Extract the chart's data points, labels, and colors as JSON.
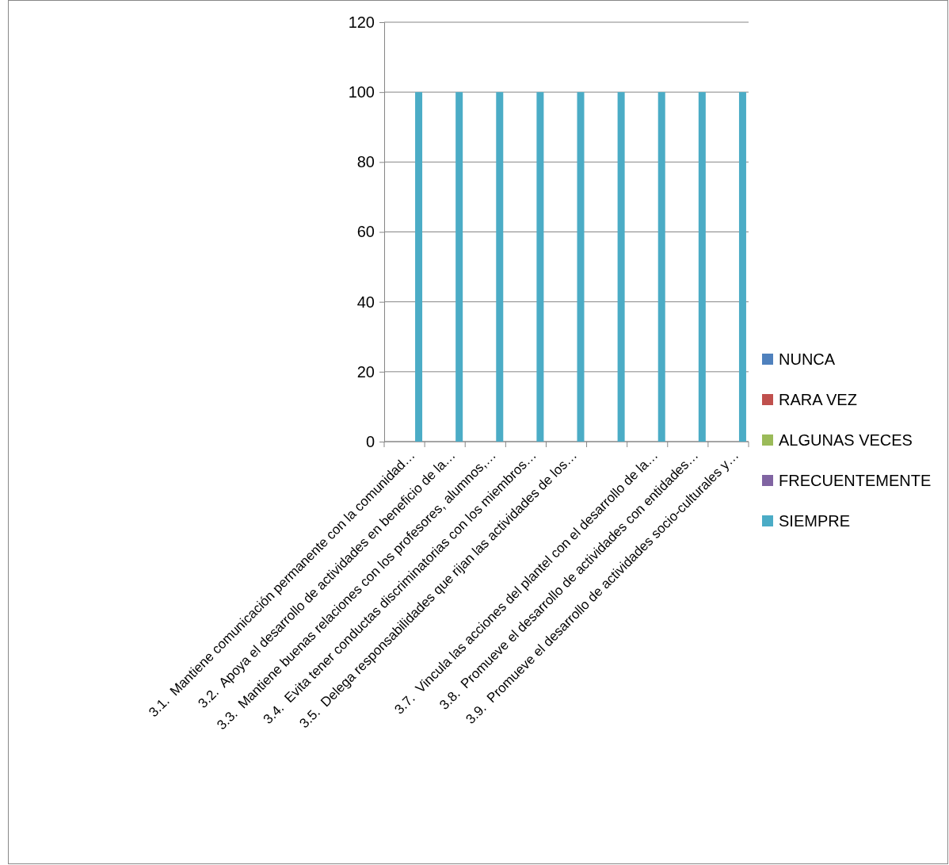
{
  "chart_data": {
    "type": "bar",
    "categories": [
      "3.1.  Mantiene comunicación permanente con la comunidad…",
      "3.2.  Apoya el desarrollo de actividades en beneficio de la…",
      "3.3.  Mantiene buenas relaciones con los profesores, alumnos,…",
      "3.4.  Evita tener conductas discriminatorias con los miembros…",
      "3.5.  Delega responsabilidades que rijan las actividades de los…",
      null,
      "3.7.  Vincula las acciones del plantel con el desarrollo de la…",
      "3.8.  Promueve el desarrollo de actividades con entidades…",
      "3.9.  Promueve el desarrollo de actividades socio-culturales y…"
    ],
    "series": [
      {
        "name": "NUNCA",
        "color": "#4f81bd",
        "values": [
          0,
          0,
          0,
          0,
          0,
          0,
          0,
          0,
          0
        ]
      },
      {
        "name": "RARA VEZ",
        "color": "#c0504d",
        "values": [
          0,
          0,
          0,
          0,
          0,
          0,
          0,
          0,
          0
        ]
      },
      {
        "name": "ALGUNAS VECES",
        "color": "#9bbb59",
        "values": [
          0,
          0,
          0,
          0,
          0,
          0,
          0,
          0,
          0
        ]
      },
      {
        "name": "FRECUENTEMENTE",
        "color": "#8064a2",
        "values": [
          0,
          0,
          0,
          0,
          0,
          0,
          0,
          0,
          0
        ]
      },
      {
        "name": "SIEMPRE",
        "color": "#4bacc6",
        "values": [
          100,
          100,
          100,
          100,
          100,
          100,
          100,
          100,
          100
        ]
      }
    ],
    "ylim": [
      0,
      120
    ],
    "yticks": [
      0,
      20,
      40,
      60,
      80,
      100,
      120
    ],
    "grid": "y",
    "legend": "right"
  }
}
